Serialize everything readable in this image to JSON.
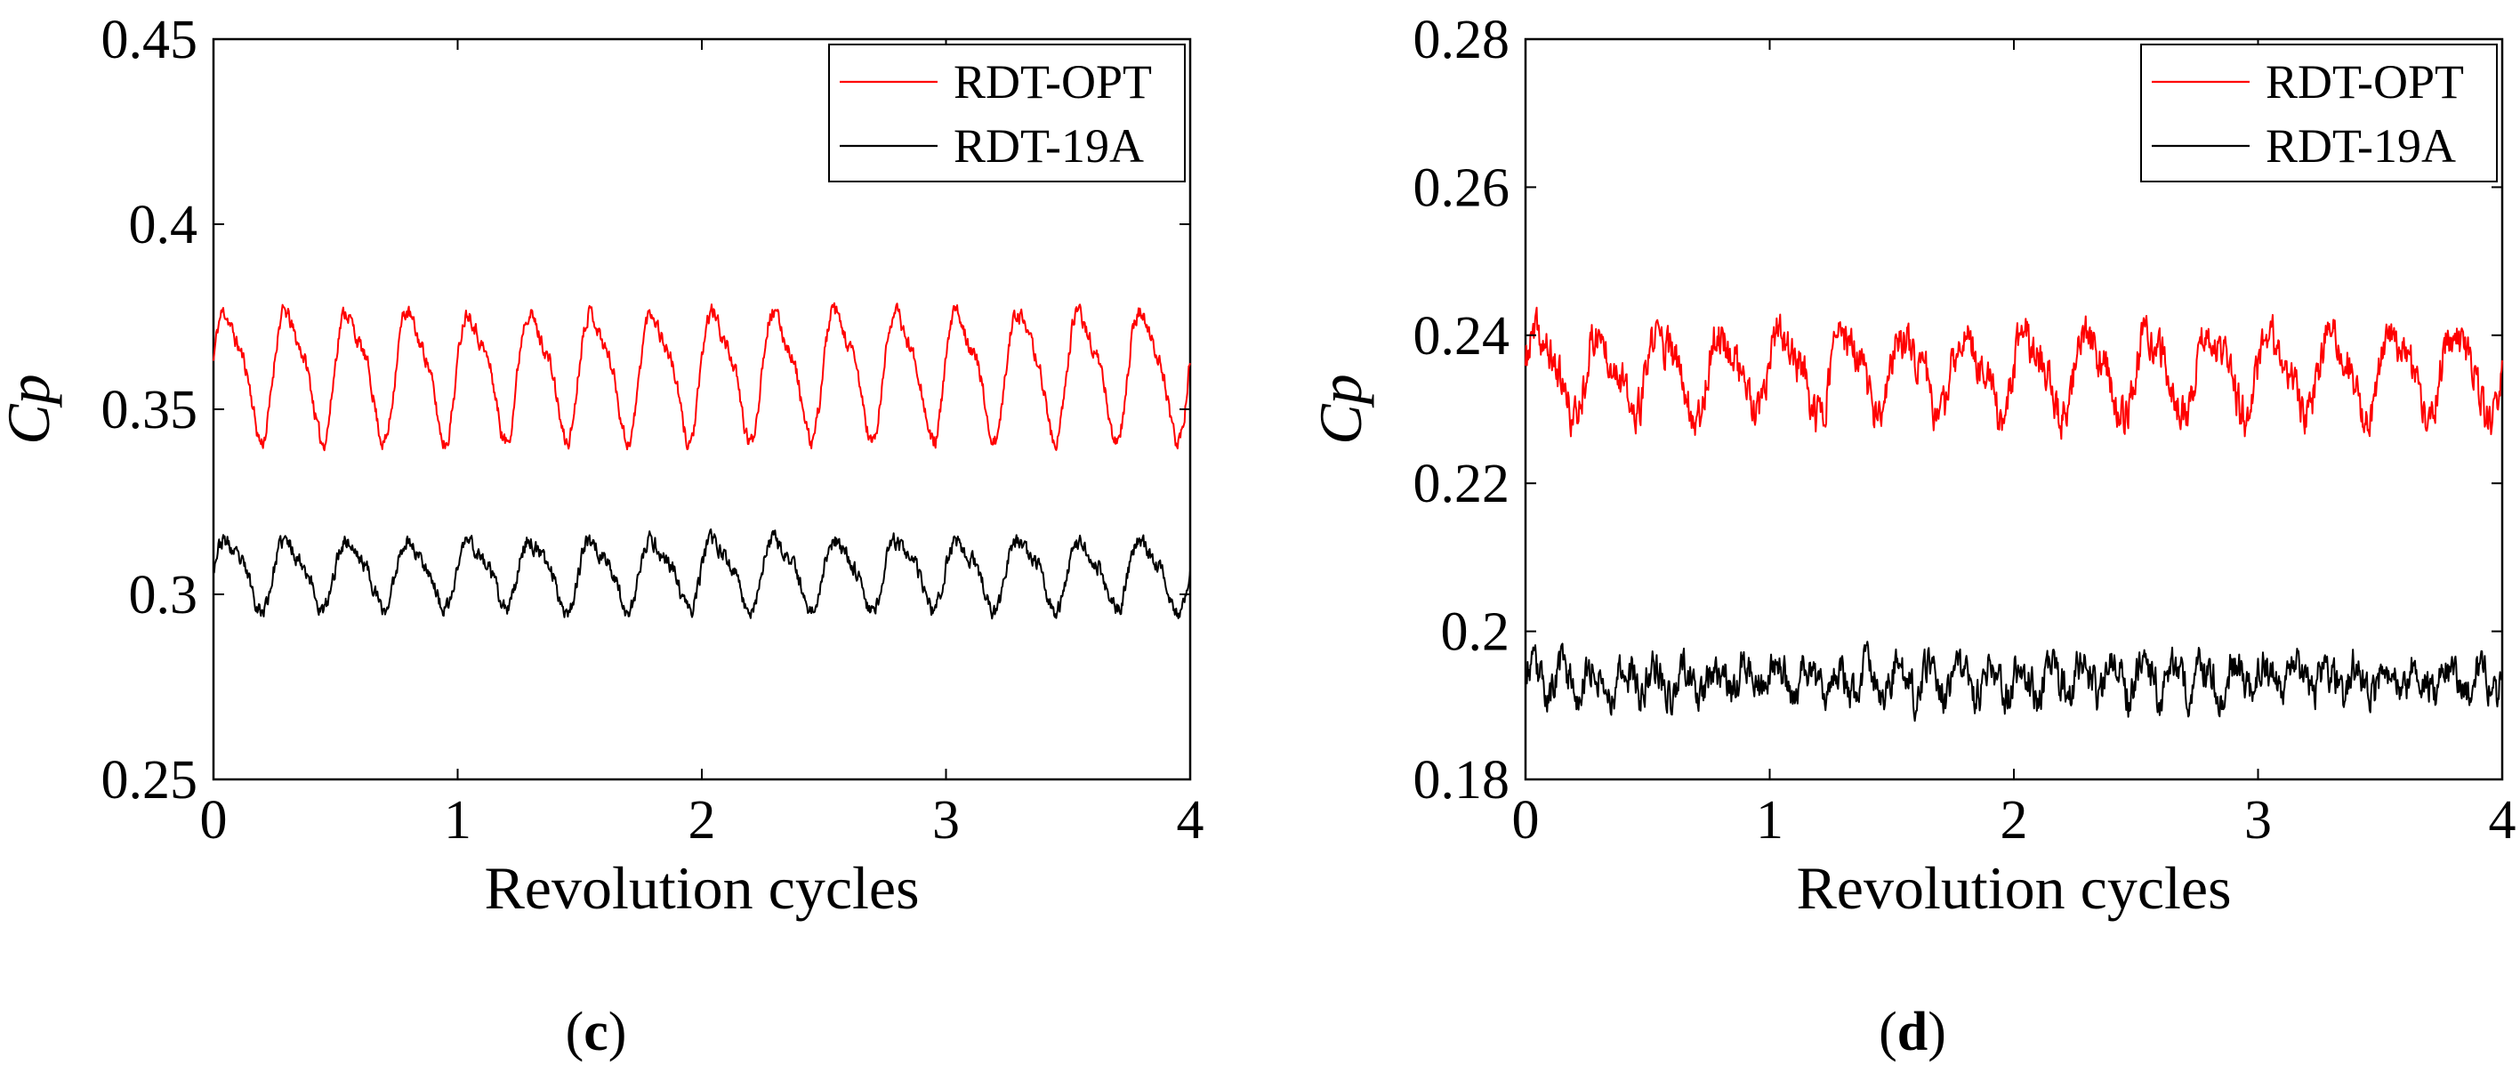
{
  "chart_data": [
    {
      "type": "line",
      "panel_label": "c",
      "xlabel": "Revolution cycles",
      "ylabel": "Cp",
      "xlim": [
        0,
        4
      ],
      "ylim": [
        0.25,
        0.45
      ],
      "xticks": [
        "0",
        "1",
        "2",
        "3",
        "4"
      ],
      "yticks": [
        "0.25",
        "0.3",
        "0.35",
        "0.4",
        "0.45"
      ],
      "legend_position": "top-right",
      "series": [
        {
          "name": "RDT-OPT",
          "color": "#ff0000",
          "mean": 0.3605,
          "amplitude": 0.0205,
          "period": 0.25,
          "noise": 0.004,
          "seed": 11
        },
        {
          "name": "RDT-19A",
          "color": "#000000",
          "mean": 0.306,
          "amplitude": 0.011,
          "period": 0.25,
          "noise": 0.004,
          "seed": 23
        }
      ]
    },
    {
      "type": "line",
      "panel_label": "d",
      "xlabel": "Revolution cycles",
      "ylabel": "Cp",
      "xlim": [
        0,
        4
      ],
      "ylim": [
        0.18,
        0.28
      ],
      "xticks": [
        "0",
        "1",
        "2",
        "3",
        "4"
      ],
      "yticks": [
        "0.18",
        "0.2",
        "0.22",
        "0.24",
        "0.26",
        "0.28"
      ],
      "legend_position": "top-right",
      "series": [
        {
          "name": "RDT-OPT",
          "color": "#ff0000",
          "mean": 0.235,
          "amplitude": 0.0065,
          "period": 0.25,
          "noise": 0.005,
          "seed": 37
        },
        {
          "name": "RDT-19A",
          "color": "#000000",
          "mean": 0.1935,
          "amplitude": 0.0025,
          "period": 0.125,
          "noise": 0.0045,
          "seed": 53
        }
      ]
    }
  ]
}
